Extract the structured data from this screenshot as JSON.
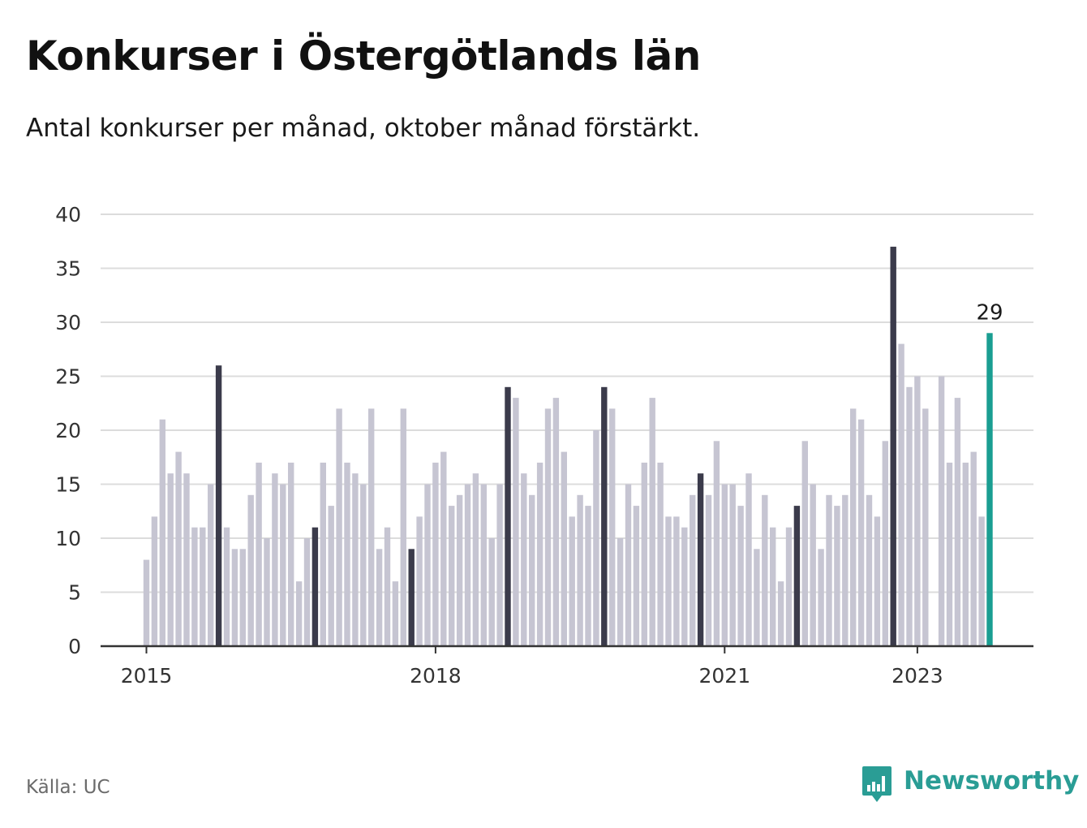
{
  "header": {
    "title": "Konkurser i Östergötlands län",
    "subtitle": "Antal konkurser per månad, oktober månad förstärkt."
  },
  "footer": {
    "source": "Källa: UC",
    "brand": "Newsworthy",
    "logo_icon": "bar-chart-speech-bubble-icon"
  },
  "colors": {
    "regular_bar": "#c6c5d2",
    "october_bar": "#3b3b4b",
    "latest_bar": "#1a9e92",
    "grid": "#dcdcdc",
    "axis": "#333333",
    "brand": "#2a9d95"
  },
  "chart_data": {
    "type": "bar",
    "title": "Konkurser i Östergötlands län",
    "subtitle": "Antal konkurser per månad, oktober månad förstärkt.",
    "start_month": "2015-01",
    "xlabel": "",
    "ylabel": "",
    "ylim": [
      0,
      40
    ],
    "yticks": [
      0,
      5,
      10,
      15,
      20,
      25,
      30,
      35,
      40
    ],
    "xtick_labels": [
      {
        "label": "2015",
        "month": "2015-01"
      },
      {
        "label": "2018",
        "month": "2018-01"
      },
      {
        "label": "2021",
        "month": "2021-01"
      },
      {
        "label": "2023",
        "month": "2023-01"
      }
    ],
    "grid": true,
    "highlight": "October of each year drawn darker; latest month highlighted with label",
    "values": [
      8,
      12,
      21,
      16,
      18,
      16,
      11,
      11,
      15,
      26,
      11,
      9,
      9,
      14,
      17,
      10,
      16,
      15,
      17,
      6,
      10,
      11,
      17,
      13,
      22,
      17,
      16,
      15,
      22,
      9,
      11,
      6,
      22,
      9,
      12,
      15,
      17,
      18,
      13,
      14,
      15,
      16,
      15,
      10,
      15,
      24,
      23,
      16,
      14,
      17,
      22,
      23,
      18,
      12,
      14,
      13,
      20,
      24,
      22,
      10,
      15,
      13,
      17,
      23,
      17,
      12,
      12,
      11,
      14,
      16,
      14,
      19,
      15,
      15,
      13,
      16,
      9,
      14,
      11,
      6,
      11,
      13,
      19,
      15,
      9,
      14,
      13,
      14,
      22,
      21,
      14,
      12,
      19,
      37,
      28,
      24,
      25,
      22,
      null,
      25,
      17,
      23,
      17,
      18,
      12,
      29
    ],
    "latest_label": "29"
  }
}
